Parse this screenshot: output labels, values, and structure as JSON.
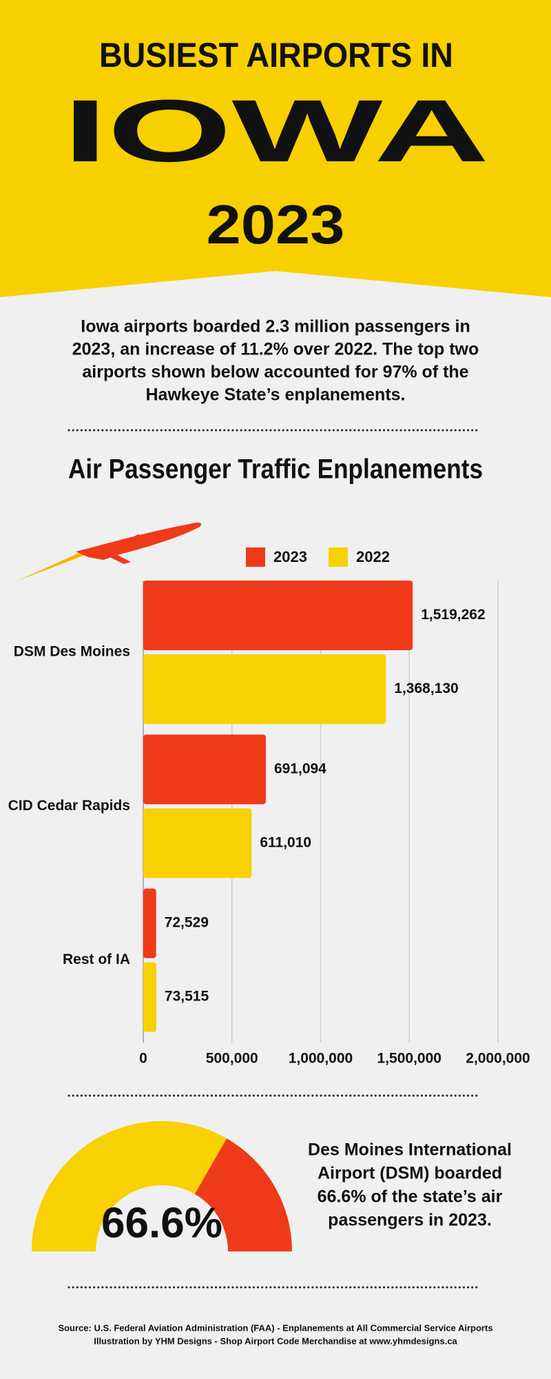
{
  "header": {
    "line1": "BUSIEST AIRPORTS IN",
    "line2": "IOWA",
    "line3": "2023"
  },
  "intro": [
    "Iowa airports boarded 2.3 million passengers in",
    "2023, an increase of 11.2% over 2022. The top two",
    "airports shown below accounted for 97% of the",
    "Hawkeye State’s enplanements."
  ],
  "chart_data": {
    "type": "hbar",
    "title": "Air Passenger Traffic Enplanements",
    "categories": [
      "DSM Des Moines",
      "CID Cedar Rapids",
      "Rest of IA"
    ],
    "series": [
      {
        "name": "2023",
        "color": "#ef3a19",
        "values": [
          1519262,
          691094,
          72529
        ],
        "value_labels": [
          "1,519,262",
          "691,094",
          "72,529"
        ]
      },
      {
        "name": "2022",
        "color": "#f7d102",
        "values": [
          1368130,
          611010,
          73515
        ],
        "value_labels": [
          "1,368,130",
          "611,010",
          "73,515"
        ]
      }
    ],
    "xlim": [
      0,
      2000000
    ],
    "xticks": [
      0,
      {
        "value": 500000,
        "label": "500,000"
      },
      {
        "value": 1000000,
        "label": "1,000,000"
      },
      {
        "value": 1500000,
        "label": "1,500,000"
      },
      {
        "value": 2000000,
        "label": "2,000,000"
      }
    ],
    "grid": true,
    "legend": "top"
  },
  "gauge": {
    "value": 66.6,
    "label": "66.6%",
    "colors": [
      "#f7d102",
      "#ef3a19"
    ],
    "text": [
      "Des Moines International",
      "Airport (DSM) boarded",
      "66.6% of the state’s air",
      "passengers in 2023."
    ]
  },
  "source": [
    "Source: U.S. Federal Aviation Administration (FAA) - Enplanements at All Commercial Service Airports",
    "Illustration by YHM Designs - Shop Airport Code Merchandise at www.yhmdesigns.ca"
  ]
}
